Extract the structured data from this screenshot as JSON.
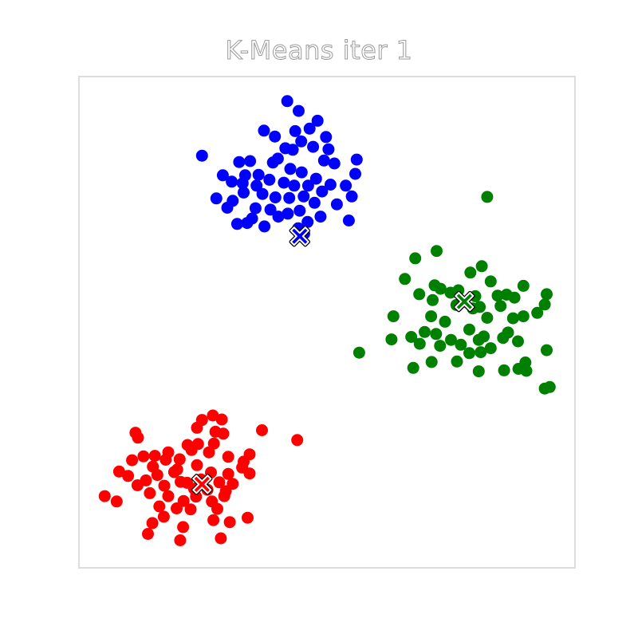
{
  "chart_data": {
    "type": "scatter",
    "title": "K-Means iter 1",
    "xlabel": "",
    "ylabel": "",
    "grid": false,
    "legend": "none",
    "xlim": [
      0,
      100
    ],
    "ylim": [
      0,
      100
    ],
    "series": [
      {
        "color": "#0000ff",
        "centroid": [
          44.5,
          67.5
        ],
        "points": [
          [
            42.0,
            95.0
          ],
          [
            44.3,
            93.0
          ],
          [
            48.1,
            91.0
          ],
          [
            49.8,
            87.7
          ],
          [
            37.3,
            89.0
          ],
          [
            39.5,
            87.8
          ],
          [
            43.6,
            88.9
          ],
          [
            46.5,
            89.4
          ],
          [
            44.8,
            86.8
          ],
          [
            50.3,
            85.2
          ],
          [
            51.5,
            82.3
          ],
          [
            56.0,
            83.1
          ],
          [
            55.7,
            80.2
          ],
          [
            34.5,
            82.8
          ],
          [
            39.1,
            82.5
          ],
          [
            41.6,
            85.4
          ],
          [
            43.1,
            85.1
          ],
          [
            47.2,
            85.7
          ],
          [
            49.4,
            82.9
          ],
          [
            24.8,
            83.9
          ],
          [
            32.3,
            82.6
          ],
          [
            33.5,
            79.9
          ],
          [
            36.2,
            80.0
          ],
          [
            40.1,
            83.3
          ],
          [
            42.6,
            81.2
          ],
          [
            44.9,
            80.5
          ],
          [
            47.8,
            79.2
          ],
          [
            50.7,
            78.0
          ],
          [
            53.8,
            77.8
          ],
          [
            55.0,
            75.6
          ],
          [
            29.0,
            79.9
          ],
          [
            30.8,
            78.6
          ],
          [
            33.0,
            78.3
          ],
          [
            35.8,
            77.8
          ],
          [
            38.4,
            79.0
          ],
          [
            41.3,
            78.4
          ],
          [
            43.4,
            77.8
          ],
          [
            46.2,
            77.8
          ],
          [
            49.0,
            76.6
          ],
          [
            52.0,
            74.0
          ],
          [
            27.7,
            75.2
          ],
          [
            31.0,
            74.7
          ],
          [
            33.2,
            76.4
          ],
          [
            37.0,
            76.1
          ],
          [
            39.6,
            75.4
          ],
          [
            42.4,
            75.3
          ],
          [
            45.3,
            75.6
          ],
          [
            47.5,
            74.3
          ],
          [
            29.9,
            73.3
          ],
          [
            35.6,
            73.2
          ],
          [
            38.6,
            72.9
          ],
          [
            42.1,
            72.1
          ],
          [
            44.5,
            72.7
          ],
          [
            48.7,
            71.5
          ],
          [
            34.9,
            71.1
          ],
          [
            40.2,
            71.5
          ],
          [
            46.1,
            70.4
          ],
          [
            54.4,
            70.7
          ],
          [
            31.9,
            70.0
          ],
          [
            33.9,
            70.2
          ],
          [
            37.4,
            69.5
          ],
          [
            44.2,
            69.1
          ],
          [
            45.4,
            68.0
          ]
        ]
      },
      {
        "color": "#008000",
        "centroid": [
          77.7,
          54.2
        ],
        "points": [
          [
            82.3,
            75.5
          ],
          [
            72.1,
            64.5
          ],
          [
            67.8,
            63.0
          ],
          [
            81.2,
            61.4
          ],
          [
            65.7,
            58.8
          ],
          [
            78.9,
            60.1
          ],
          [
            72.9,
            56.8
          ],
          [
            83.0,
            58.3
          ],
          [
            86.2,
            55.6
          ],
          [
            94.3,
            55.7
          ],
          [
            68.6,
            55.7
          ],
          [
            71.7,
            57.5
          ],
          [
            74.9,
            56.0
          ],
          [
            79.9,
            55.3
          ],
          [
            84.4,
            55.4
          ],
          [
            89.6,
            57.4
          ],
          [
            93.9,
            53.6
          ],
          [
            63.4,
            51.2
          ],
          [
            71.3,
            54.5
          ],
          [
            76.5,
            56.5
          ],
          [
            80.8,
            53.1
          ],
          [
            85.0,
            53.3
          ],
          [
            87.8,
            55.0
          ],
          [
            92.4,
            51.9
          ],
          [
            71.0,
            51.2
          ],
          [
            73.8,
            50.1
          ],
          [
            76.1,
            53.5
          ],
          [
            79.4,
            52.8
          ],
          [
            82.3,
            50.9
          ],
          [
            87.5,
            50.8
          ],
          [
            89.6,
            51.2
          ],
          [
            63.0,
            46.5
          ],
          [
            67.0,
            47.0
          ],
          [
            69.7,
            48.0
          ],
          [
            72.0,
            47.6
          ],
          [
            75.0,
            46.4
          ],
          [
            78.7,
            48.5
          ],
          [
            81.6,
            47.1
          ],
          [
            85.5,
            46.8
          ],
          [
            88.5,
            46.1
          ],
          [
            94.3,
            44.3
          ],
          [
            68.7,
            45.6
          ],
          [
            72.8,
            45.2
          ],
          [
            77.0,
            45.4
          ],
          [
            80.6,
            46.4
          ],
          [
            83.0,
            44.7
          ],
          [
            86.5,
            47.9
          ],
          [
            56.5,
            43.8
          ],
          [
            71.1,
            41.9
          ],
          [
            76.2,
            42.0
          ],
          [
            78.7,
            43.7
          ],
          [
            81.0,
            43.9
          ],
          [
            85.7,
            40.2
          ],
          [
            90.0,
            41.8
          ],
          [
            67.4,
            40.7
          ],
          [
            80.6,
            40.0
          ],
          [
            90.2,
            40.1
          ],
          [
            93.9,
            36.5
          ],
          [
            94.9,
            36.8
          ],
          [
            88.6,
            40.5
          ]
        ]
      },
      {
        "color": "#ff0000",
        "centroid": [
          24.8,
          17.0
        ],
        "points": [
          [
            27.0,
            31.0
          ],
          [
            28.8,
            30.2
          ],
          [
            24.8,
            30.1
          ],
          [
            36.9,
            28.0
          ],
          [
            23.8,
            28.5
          ],
          [
            27.5,
            27.7
          ],
          [
            29.1,
            27.3
          ],
          [
            11.4,
            27.5
          ],
          [
            11.9,
            26.5
          ],
          [
            44.0,
            26.0
          ],
          [
            21.9,
            25.0
          ],
          [
            24.0,
            25.2
          ],
          [
            27.2,
            25.3
          ],
          [
            34.4,
            23.1
          ],
          [
            13.0,
            22.7
          ],
          [
            15.3,
            22.8
          ],
          [
            18.0,
            23.5
          ],
          [
            20.3,
            22.1
          ],
          [
            22.7,
            24.0
          ],
          [
            26.2,
            23.5
          ],
          [
            30.1,
            22.6
          ],
          [
            33.2,
            21.6
          ],
          [
            10.7,
            21.9
          ],
          [
            14.9,
            20.6
          ],
          [
            17.5,
            22.0
          ],
          [
            19.8,
            20.0
          ],
          [
            23.8,
            20.9
          ],
          [
            26.6,
            19.4
          ],
          [
            30.1,
            19.1
          ],
          [
            32.9,
            20.4
          ],
          [
            8.1,
            19.6
          ],
          [
            9.9,
            18.7
          ],
          [
            13.5,
            17.8
          ],
          [
            15.8,
            18.9
          ],
          [
            19.2,
            19.5
          ],
          [
            21.8,
            17.3
          ],
          [
            24.6,
            18.0
          ],
          [
            28.3,
            17.4
          ],
          [
            31.0,
            17.1
          ],
          [
            34.4,
            19.2
          ],
          [
            11.8,
            16.8
          ],
          [
            17.2,
            16.7
          ],
          [
            20.5,
            17.5
          ],
          [
            23.2,
            16.1
          ],
          [
            25.9,
            15.9
          ],
          [
            29.6,
            15.6
          ],
          [
            5.2,
            14.6
          ],
          [
            7.6,
            13.5
          ],
          [
            14.3,
            15.2
          ],
          [
            18.0,
            14.6
          ],
          [
            21.1,
            13.6
          ],
          [
            23.6,
            14.5
          ],
          [
            26.8,
            13.5
          ],
          [
            29.3,
            14.6
          ],
          [
            16.2,
            12.5
          ],
          [
            19.7,
            12.1
          ],
          [
            22.5,
            11.9
          ],
          [
            27.9,
            12.0
          ],
          [
            17.1,
            10.4
          ],
          [
            27.1,
            9.7
          ],
          [
            30.4,
            9.3
          ],
          [
            34.0,
            10.2
          ],
          [
            14.8,
            9.1
          ],
          [
            21.0,
            8.3
          ],
          [
            13.9,
            6.9
          ],
          [
            20.4,
            5.6
          ],
          [
            28.6,
            6.0
          ]
        ]
      }
    ]
  }
}
